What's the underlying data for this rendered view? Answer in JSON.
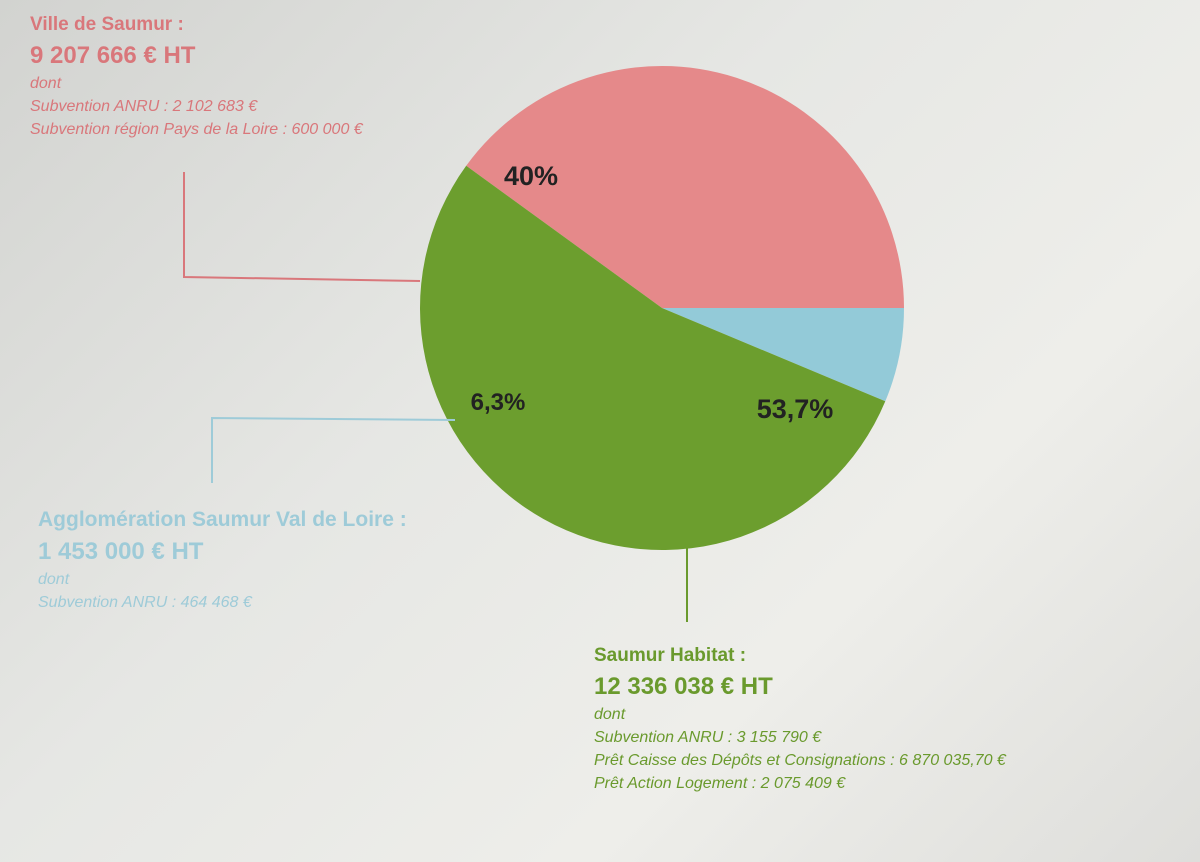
{
  "colors": {
    "ville": "#e5898a",
    "agglo": "#93cad8",
    "habitat": "#6c9e2e",
    "ville_text": "#d9777b",
    "agglo_text": "#9ecbd8",
    "habitat_text": "#6a9a2d",
    "slice_label": "#222222"
  },
  "blocks": {
    "ville": {
      "name": "Ville de Saumur :",
      "amount": "9 207 666 € HT",
      "dont": "dont",
      "lines": [
        "Subvention ANRU : 2 102 683 €",
        "Subvention région Pays de la Loire : 600 000 €"
      ]
    },
    "agglo": {
      "name": "Agglomération Saumur Val de Loire :",
      "amount": "1 453 000 € HT",
      "dont": "dont",
      "lines": [
        "Subvention ANRU : 464 468 €"
      ]
    },
    "habitat": {
      "name": "Saumur Habitat :",
      "amount": "12 336 038 € HT",
      "dont": "dont",
      "lines": [
        "Subvention ANRU : 3 155 790 €",
        "Prêt Caisse des Dépôts et Consignations : 6 870 035,70 €",
        "Prêt Action Logement : 2 075 409 €"
      ]
    }
  },
  "chart_data": {
    "type": "pie",
    "title": "",
    "slices": [
      {
        "label": "Ville de Saumur",
        "value": 40,
        "display": "40%",
        "color": "#e5898a"
      },
      {
        "label": "Agglomération Saumur Val de Loire",
        "value": 6.3,
        "display": "6,3%",
        "color": "#93cad8"
      },
      {
        "label": "Saumur Habitat",
        "value": 53.7,
        "display": "53,7%",
        "color": "#6c9e2e"
      }
    ]
  }
}
